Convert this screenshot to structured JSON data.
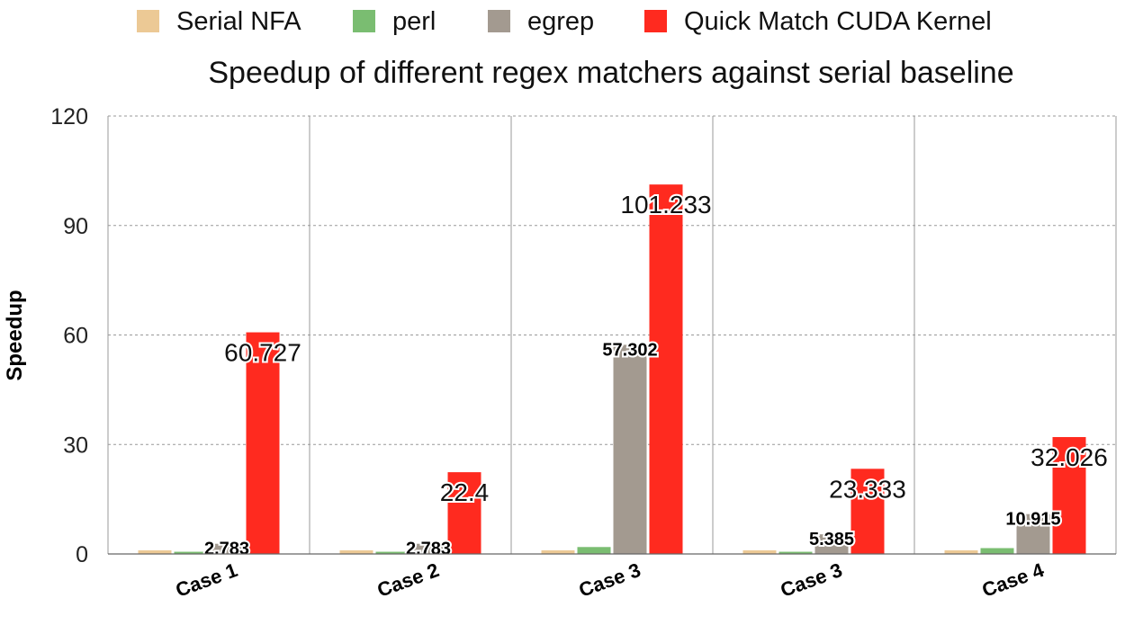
{
  "chart_data": {
    "type": "bar",
    "title": "Speedup of different regex matchers against serial baseline",
    "xlabel": "",
    "ylabel": "Speedup",
    "ylim": [
      0,
      120
    ],
    "yticks": [
      0,
      30,
      60,
      90,
      120
    ],
    "grid": true,
    "legend_position": "top",
    "categories": [
      "Case 1",
      "Case 2",
      "Case 3",
      "Case 3",
      "Case 4"
    ],
    "series": [
      {
        "name": "Serial NFA",
        "color": "#ecc995",
        "values": [
          1,
          1,
          1,
          1,
          1
        ],
        "labels": [
          "",
          "",
          "",
          "",
          ""
        ]
      },
      {
        "name": "perl",
        "color": "#7abd71",
        "values": [
          0.6,
          0.6,
          1.9,
          0.6,
          1.6
        ],
        "labels": [
          "",
          "",
          "",
          "",
          ""
        ]
      },
      {
        "name": "egrep",
        "color": "#a39a90",
        "values": [
          2.783,
          2.783,
          57.302,
          5.385,
          10.915
        ],
        "labels": [
          "2.783",
          "2.783",
          "57.302",
          "5.385",
          "10.915"
        ]
      },
      {
        "name": "Quick Match CUDA Kernel",
        "color": "#ff2a1f",
        "values": [
          60.727,
          22.4,
          101.233,
          23.333,
          32.026
        ],
        "labels": [
          "60.727",
          "22.4",
          "101.233",
          "23.333",
          "32.026"
        ]
      }
    ]
  }
}
